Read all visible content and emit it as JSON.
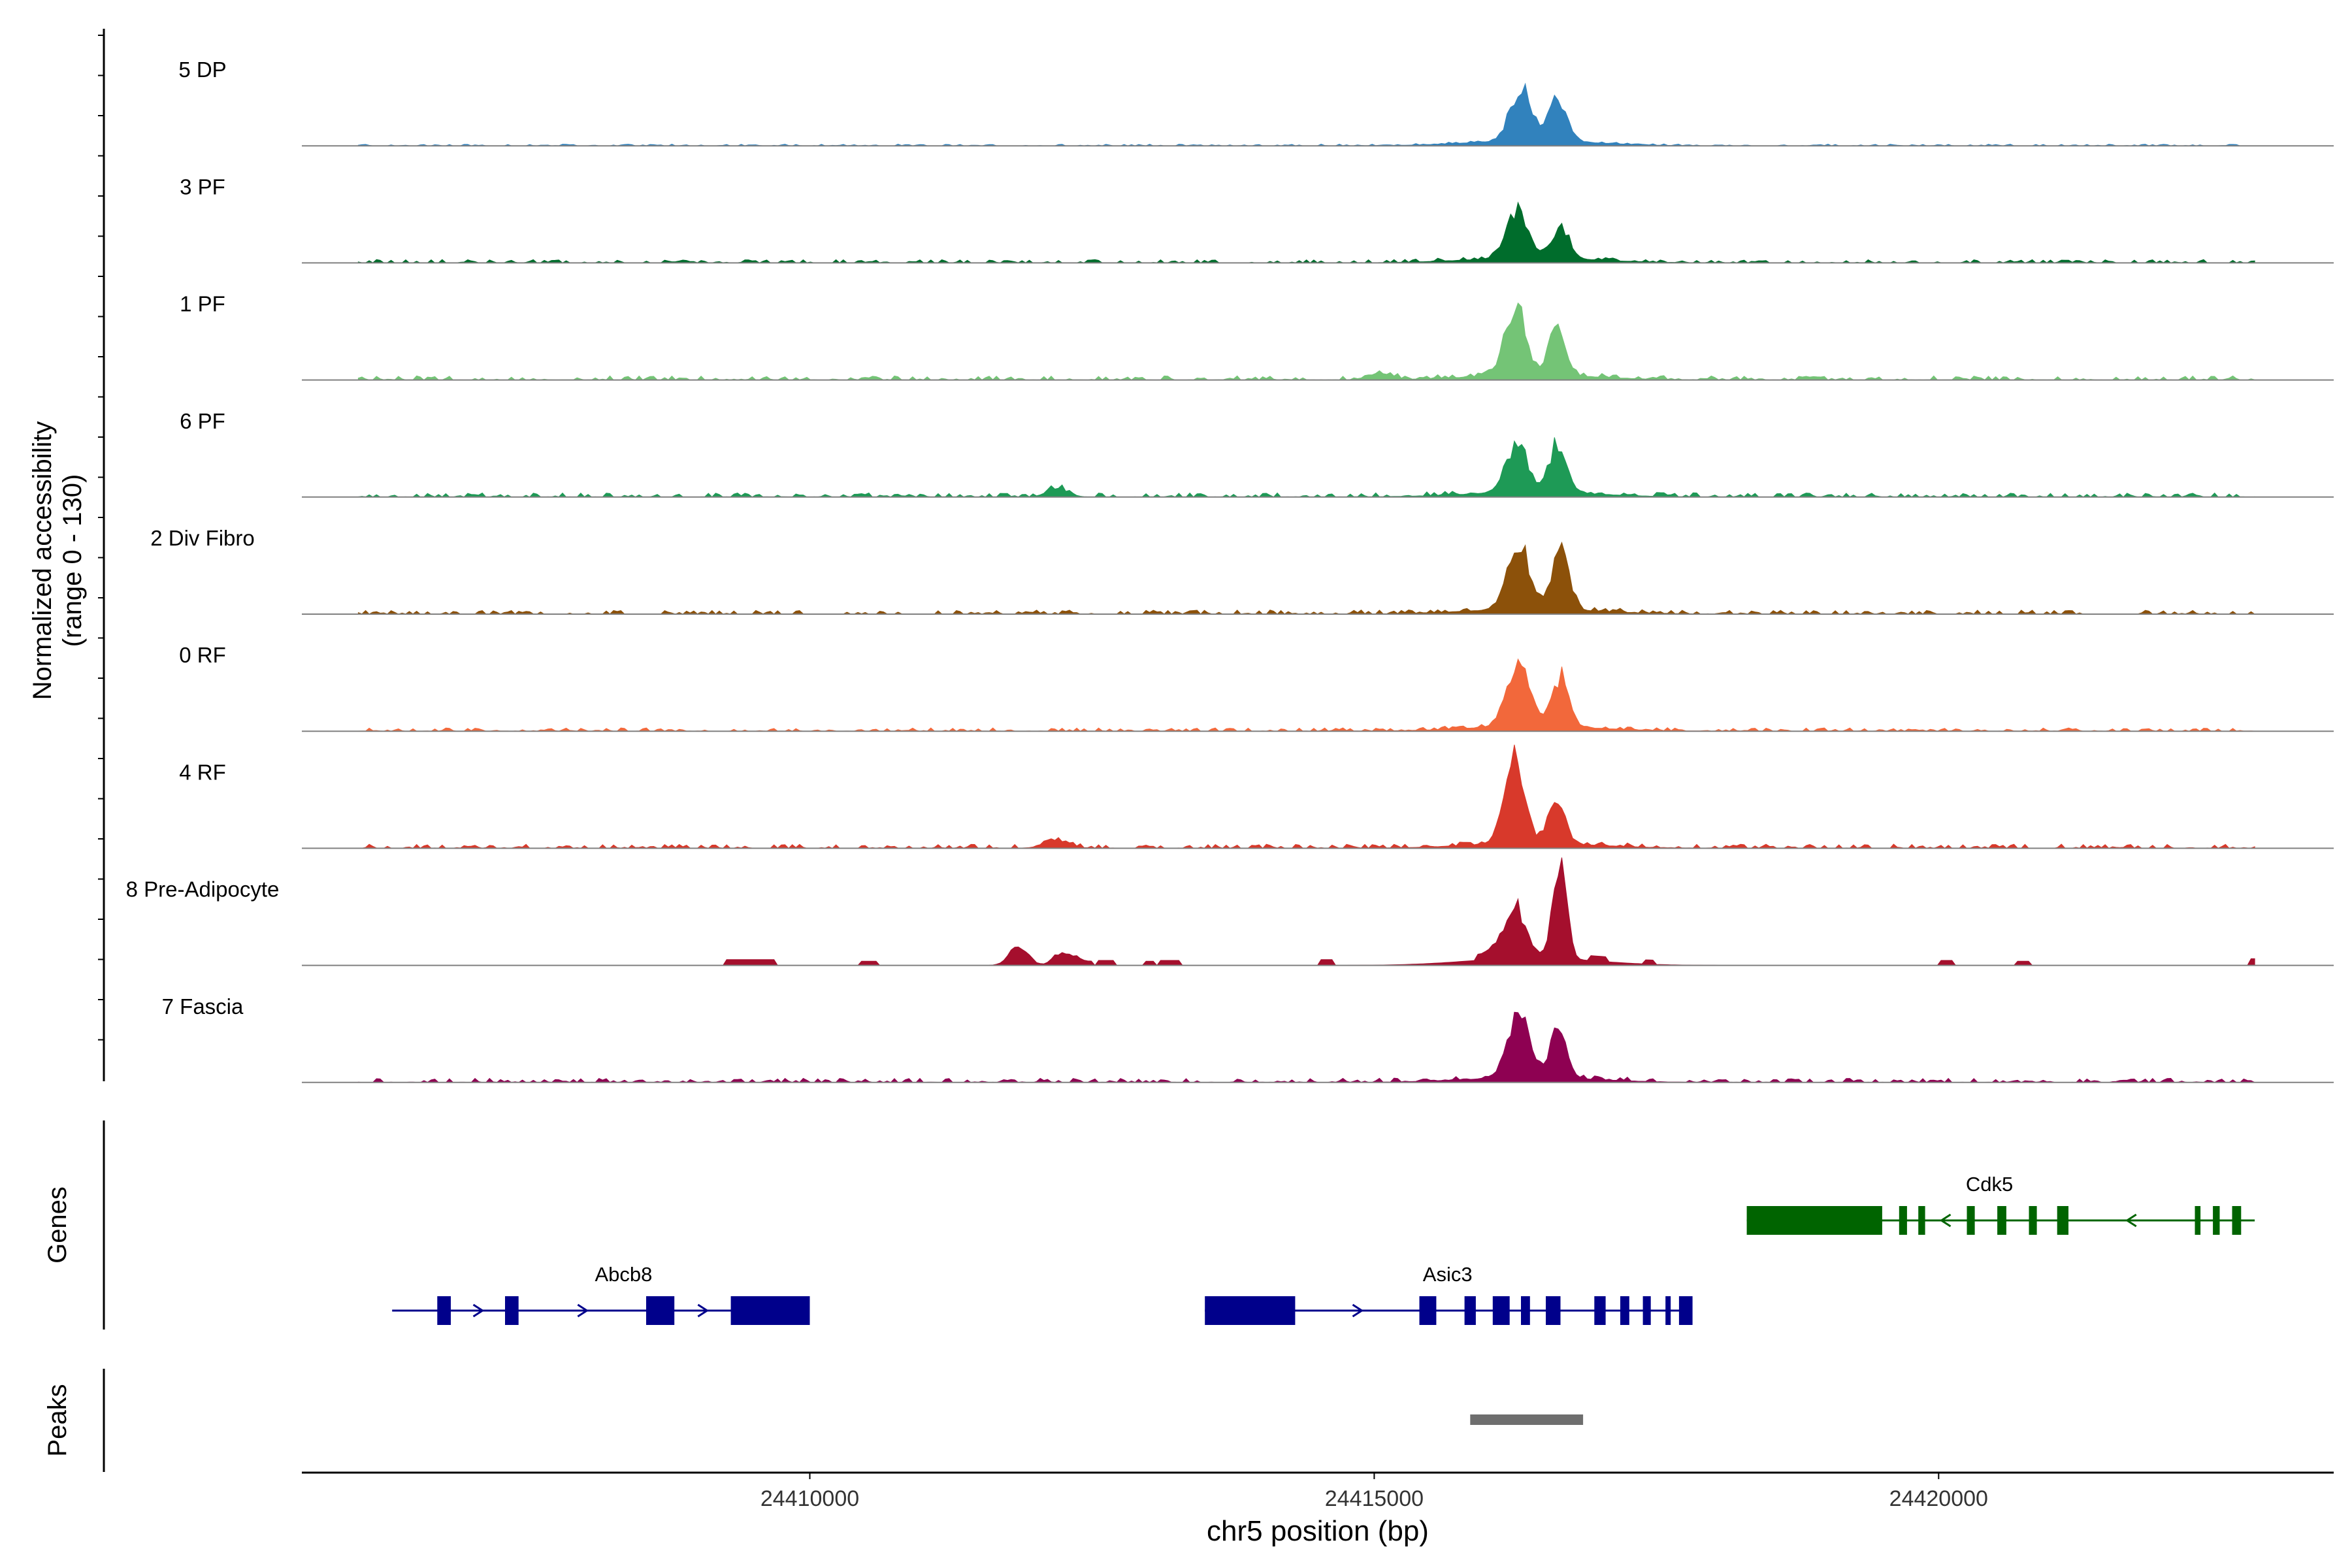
{
  "chart_data": {
    "type": "area",
    "title": "",
    "ylabel_line1": "Normalized accessibility",
    "ylabel_line2": "(range 0 - 130)",
    "ylim": [
      0,
      130
    ],
    "xlabel": "chr5 position (bp)",
    "xlim": [
      24405500,
      24423500
    ],
    "xticks": [
      24410000,
      24415000,
      24420000
    ],
    "xtick_labels": [
      "24410000",
      "24415000",
      "24420000"
    ],
    "region": [
      24406000,
      24422800
    ],
    "tracks": [
      {
        "name": "5 DP",
        "color": "#3182BD",
        "noise": 2,
        "sparse": false,
        "peaks": [
          [
            24416300,
            95,
            130
          ],
          [
            24416630,
            80,
            100
          ]
        ]
      },
      {
        "name": "3 PF",
        "color": "#006D2C",
        "noise": 4,
        "sparse": false,
        "peaks": [
          [
            24416270,
            95,
            115
          ],
          [
            24416650,
            75,
            70
          ]
        ]
      },
      {
        "name": "1 PF",
        "color": "#74C476",
        "noise": 5,
        "sparse": false,
        "peaks": [
          [
            24416250,
            90,
            160
          ],
          [
            24416620,
            70,
            115
          ],
          [
            24415050,
            100,
            18
          ]
        ]
      },
      {
        "name": "6 PF",
        "color": "#1E9A56",
        "noise": 5,
        "sparse": false,
        "peaks": [
          [
            24416260,
            95,
            115
          ],
          [
            24416630,
            80,
            115
          ],
          [
            24412200,
            90,
            20
          ]
        ]
      },
      {
        "name": "2 Div Fibro",
        "color": "#8C510A",
        "noise": 5,
        "sparse": false,
        "peaks": [
          [
            24416280,
            100,
            150
          ],
          [
            24416650,
            75,
            140
          ]
        ]
      },
      {
        "name": "0 RF",
        "color": "#F2683B",
        "noise": 4,
        "sparse": false,
        "peaks": [
          [
            24416280,
            100,
            145
          ],
          [
            24416650,
            75,
            120
          ]
        ]
      },
      {
        "name": "4 RF",
        "color": "#D8392B",
        "noise": 5,
        "sparse": false,
        "peaks": [
          [
            24416240,
            90,
            205
          ],
          [
            24416620,
            70,
            115
          ],
          [
            24412200,
            110,
            18
          ]
        ]
      },
      {
        "name": "8 Pre-Adipocyte",
        "color": "#A50F2D",
        "noise": 0,
        "sparse": true,
        "peaks": [
          [
            24416240,
            100,
            130
          ],
          [
            24416640,
            60,
            250
          ],
          [
            24411850,
            80,
            50
          ],
          [
            24412250,
            80,
            35
          ]
        ]
      },
      {
        "name": "7 Fascia",
        "color": "#8E0152",
        "noise": 5,
        "sparse": false,
        "peaks": [
          [
            24416280,
            100,
            145
          ],
          [
            24416640,
            70,
            120
          ]
        ]
      }
    ],
    "genes_label": "Genes",
    "genes": [
      {
        "name": "Cdk5",
        "color": "#006400",
        "strand": "-",
        "start": 24418300,
        "end": 24422800,
        "label_pos": 24420450,
        "exons": [
          [
            24418300,
            24419500
          ],
          [
            24419650,
            24419720
          ],
          [
            24419820,
            24419880
          ],
          [
            24420250,
            24420320
          ],
          [
            24420520,
            24420600
          ],
          [
            24420800,
            24420870
          ],
          [
            24421050,
            24421150
          ],
          [
            24422270,
            24422320
          ],
          [
            24422430,
            24422490
          ],
          [
            24422600,
            24422680
          ]
        ]
      },
      {
        "name": "Abcb8",
        "color": "#00008B",
        "strand": "+",
        "start": 24406300,
        "end": 24410000,
        "label_pos": 24408350,
        "exons": [
          [
            24406700,
            24406820
          ],
          [
            24407300,
            24407420
          ],
          [
            24408550,
            24408800
          ],
          [
            24409300,
            24410000
          ]
        ]
      },
      {
        "name": "Asic3",
        "color": "#00008B",
        "strand": "+",
        "start": 24413500,
        "end": 24417800,
        "label_pos": 24415650,
        "exons": [
          [
            24413500,
            24414300
          ],
          [
            24415400,
            24415550
          ],
          [
            24415800,
            24415900
          ],
          [
            24416050,
            24416200
          ],
          [
            24416300,
            24416380
          ],
          [
            24416520,
            24416650
          ],
          [
            24416950,
            24417050
          ],
          [
            24417180,
            24417260
          ],
          [
            24417380,
            24417450
          ],
          [
            24417580,
            24417620
          ],
          [
            24417700,
            24417820
          ]
        ]
      }
    ],
    "peaks_label": "Peaks",
    "peak_regions": [
      [
        24415850,
        24416850
      ]
    ]
  }
}
